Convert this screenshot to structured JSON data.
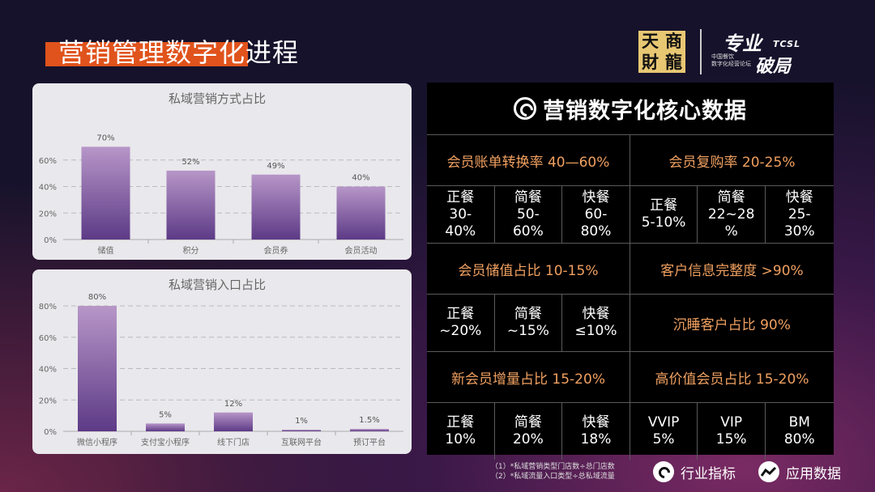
{
  "page": {
    "title": "营销管理数字化进程",
    "logo_left_chars": [
      "天",
      "商",
      "財",
      "龍"
    ],
    "logo_right_big1": "专业",
    "logo_right_tcsl": "TCSL",
    "logo_right_small": [
      "中国餐饮",
      "数字化经营论坛"
    ],
    "logo_right_big2": "破局",
    "accent_color": "#e0531c"
  },
  "chart_data": [
    {
      "type": "bar",
      "title": "私域营销方式占比",
      "categories": [
        "储值",
        "积分",
        "会员券",
        "会员活动"
      ],
      "values": [
        70,
        52,
        49,
        40
      ],
      "data_labels": [
        "70%",
        "52%",
        "49%",
        "40%"
      ],
      "yticks": [
        "0%",
        "20%",
        "40%",
        "60%"
      ],
      "ylim": [
        0,
        80
      ],
      "grid": true
    },
    {
      "type": "bar",
      "title": "私域营销入口占比",
      "categories": [
        "微信小程序",
        "支付宝小程序",
        "线下门店",
        "互联网平台",
        "预订平台"
      ],
      "values": [
        80,
        5,
        12,
        1,
        1.5
      ],
      "data_labels": [
        "80%",
        "5%",
        "12%",
        "1%",
        "1.5%"
      ],
      "yticks": [
        "0%",
        "20%",
        "40%",
        "60%",
        "80%"
      ],
      "ylim": [
        0,
        80
      ],
      "grid": true
    }
  ],
  "panel": {
    "title": "营销数字化核心数据",
    "rows": [
      {
        "kind": "metric",
        "left": "会员账单转换率  40—60%",
        "right": "会员复购率  20-25%"
      },
      {
        "kind": "values",
        "left": [
          [
            "正餐",
            "30-",
            "40%"
          ],
          [
            "简餐",
            "50-",
            "60%"
          ],
          [
            "快餐",
            "60-",
            "80%"
          ]
        ],
        "right": [
          [
            "正餐",
            "5-10%"
          ],
          [
            "简餐",
            "22~28",
            "%"
          ],
          [
            "快餐",
            "25-",
            "30%"
          ]
        ]
      },
      {
        "kind": "metric",
        "left": "会员储值占比  10-15%",
        "right": "客户信息完整度  >90%"
      },
      {
        "kind": "values_single",
        "left": [
          [
            "正餐",
            "~20%"
          ],
          [
            "简餐",
            "~15%"
          ],
          [
            "快餐",
            "≤10%"
          ]
        ],
        "right": "沉睡客户占比  90%"
      },
      {
        "kind": "metric",
        "left": "新会员增量占比  15-20%",
        "right": "高价值会员占比  15-20%"
      },
      {
        "kind": "values",
        "left": [
          [
            "正餐",
            "10%"
          ],
          [
            "简餐",
            "20%"
          ],
          [
            "快餐",
            "18%"
          ]
        ],
        "right": [
          [
            "VVIP",
            "5%"
          ],
          [
            "VIP",
            "15%"
          ],
          [
            "BM",
            "80%"
          ]
        ]
      }
    ]
  },
  "footnotes": [
    "（1）*私域营销类型门店数÷总门店数",
    "（2）*私域流量入口类型÷总私域流量"
  ],
  "legend": [
    {
      "icon": "metric-icon",
      "label": "行业指标"
    },
    {
      "icon": "trend-icon",
      "label": "应用数据"
    }
  ]
}
